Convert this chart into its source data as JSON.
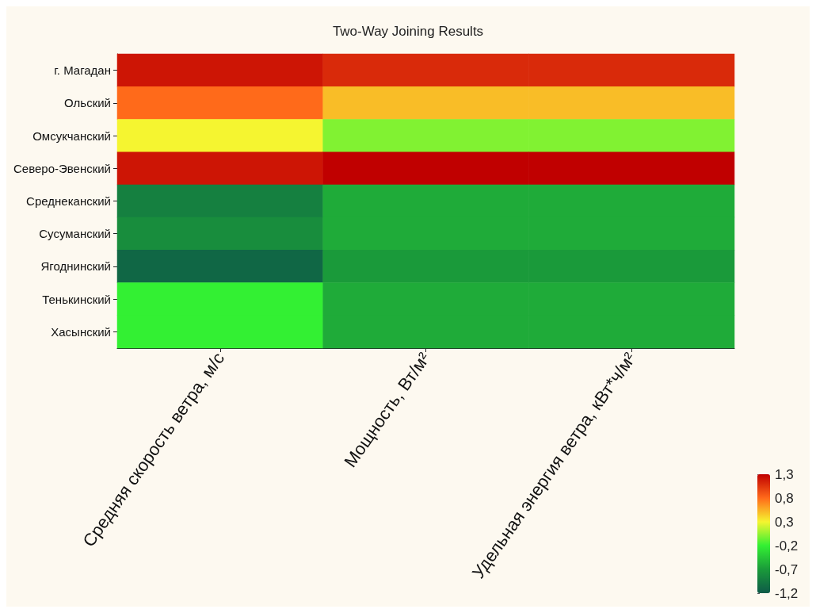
{
  "chart_data": {
    "type": "heatmap",
    "title": "Two-Way Joining Results",
    "categories": [
      "Средняя скорость ветра, м/с",
      "Мощность, Вт/м²",
      "Удельная энергия ветра, кВт*ч/м²"
    ],
    "y_categories": [
      "г. Магадан",
      "Ольский",
      "Омсукчанский",
      "Северо-Эвенский",
      "Среднеканский",
      "Сусуманский",
      "Ягоднинский",
      "Тенькинский",
      "Хасынский"
    ],
    "cells": [
      [
        1.2,
        1.1,
        1.1
      ],
      [
        0.8,
        0.5,
        0.5
      ],
      [
        0.3,
        0.0,
        0.0
      ],
      [
        1.2,
        1.3,
        1.3
      ],
      [
        -0.9,
        -0.6,
        -0.6
      ],
      [
        -0.8,
        -0.6,
        -0.6
      ],
      [
        -1.1,
        -0.7,
        -0.7
      ],
      [
        -0.2,
        -0.6,
        -0.6
      ],
      [
        -0.2,
        -0.6,
        -0.6
      ]
    ],
    "cticks": [
      {
        "value": 1.3,
        "label": "1,3"
      },
      {
        "value": 0.8,
        "label": "0,8"
      },
      {
        "value": 0.3,
        "label": "0,3"
      },
      {
        "value": -0.2,
        "label": "-0,2"
      },
      {
        "value": -0.7,
        "label": "-0,7"
      },
      {
        "value": -1.2,
        "label": "-1,2"
      }
    ],
    "colors": [
      "#c00000",
      "#ff6a1a",
      "#f5f530",
      "#33f033",
      "#1a9a3a",
      "#0e5a48"
    ]
  }
}
